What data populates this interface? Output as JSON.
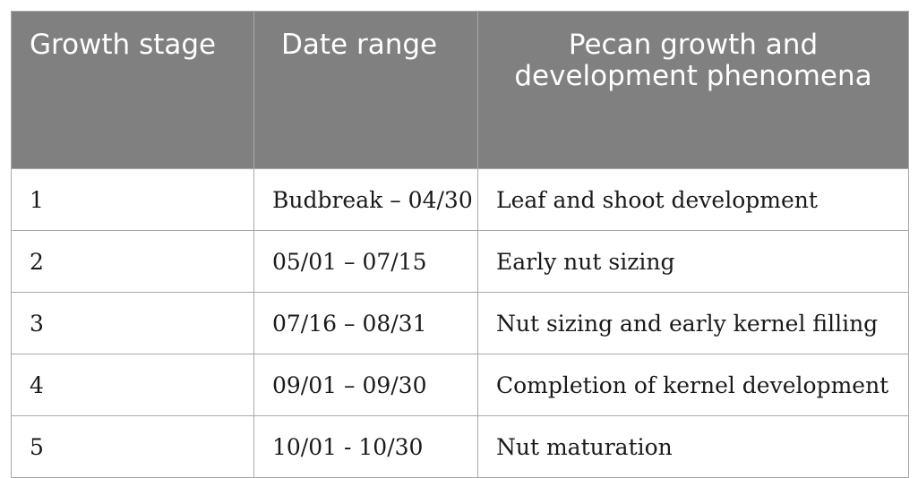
{
  "table": {
    "headers": [
      "Growth stage",
      "Date range",
      "Pecan growth and development phenomena"
    ],
    "rows": [
      [
        "1",
        "Budbreak – 04/30",
        "Leaf and shoot development"
      ],
      [
        "2",
        "05/01 – 07/15",
        "Early nut sizing"
      ],
      [
        "3",
        "07/16 – 08/31",
        "Nut sizing and early kernel filling"
      ],
      [
        "4",
        "09/01 – 09/30",
        "Completion of kernel development"
      ],
      [
        "5",
        "10/01 - 10/30",
        "Nut maturation"
      ]
    ]
  },
  "colors": {
    "header_background": "#808080",
    "header_text": "#ffffff",
    "border": "#a9a9a9"
  }
}
